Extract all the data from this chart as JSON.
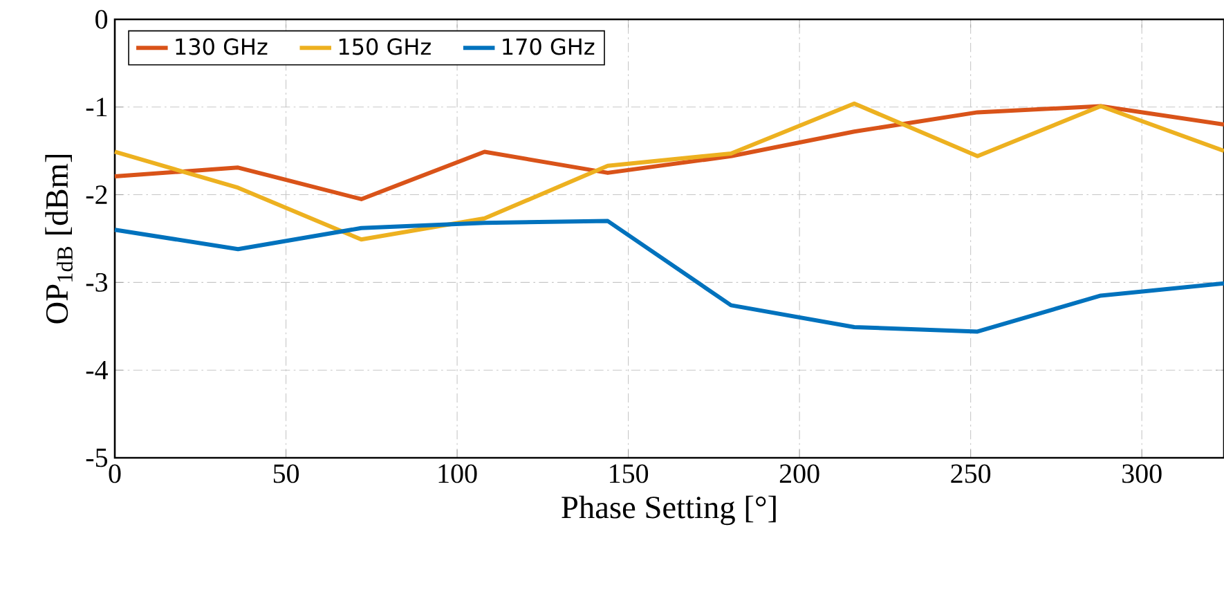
{
  "chart_data": {
    "type": "line",
    "xlabel": "Phase Setting [°]",
    "ylabel": "OP$_{1dB}$ [dBm]",
    "x": [
      0,
      36,
      72,
      108,
      144,
      180,
      216,
      252,
      288,
      324
    ],
    "series": [
      {
        "name": "130 GHz",
        "color": "#d95319",
        "values": [
          -1.79,
          -1.69,
          -2.05,
          -1.51,
          -1.75,
          -1.56,
          -1.28,
          -1.06,
          -0.99,
          -1.2
        ]
      },
      {
        "name": "150 GHz",
        "color": "#edb120",
        "values": [
          -1.51,
          -1.92,
          -2.51,
          -2.27,
          -1.67,
          -1.53,
          -0.96,
          -1.56,
          -0.99,
          -1.5
        ]
      },
      {
        "name": "170 GHz",
        "color": "#0072bd",
        "values": [
          -2.4,
          -2.62,
          -2.38,
          -2.32,
          -2.3,
          -3.26,
          -3.51,
          -3.56,
          -3.15,
          -3.01
        ]
      }
    ],
    "xlim": [
      0,
      324
    ],
    "ylim": [
      -5,
      0
    ],
    "xticks": [
      0,
      50,
      100,
      150,
      200,
      250,
      300
    ],
    "yticks": [
      -5,
      -4,
      -3,
      -2,
      -1,
      0
    ],
    "grid": true,
    "legend": "top left",
    "marker": "none",
    "line_style": "solid"
  }
}
